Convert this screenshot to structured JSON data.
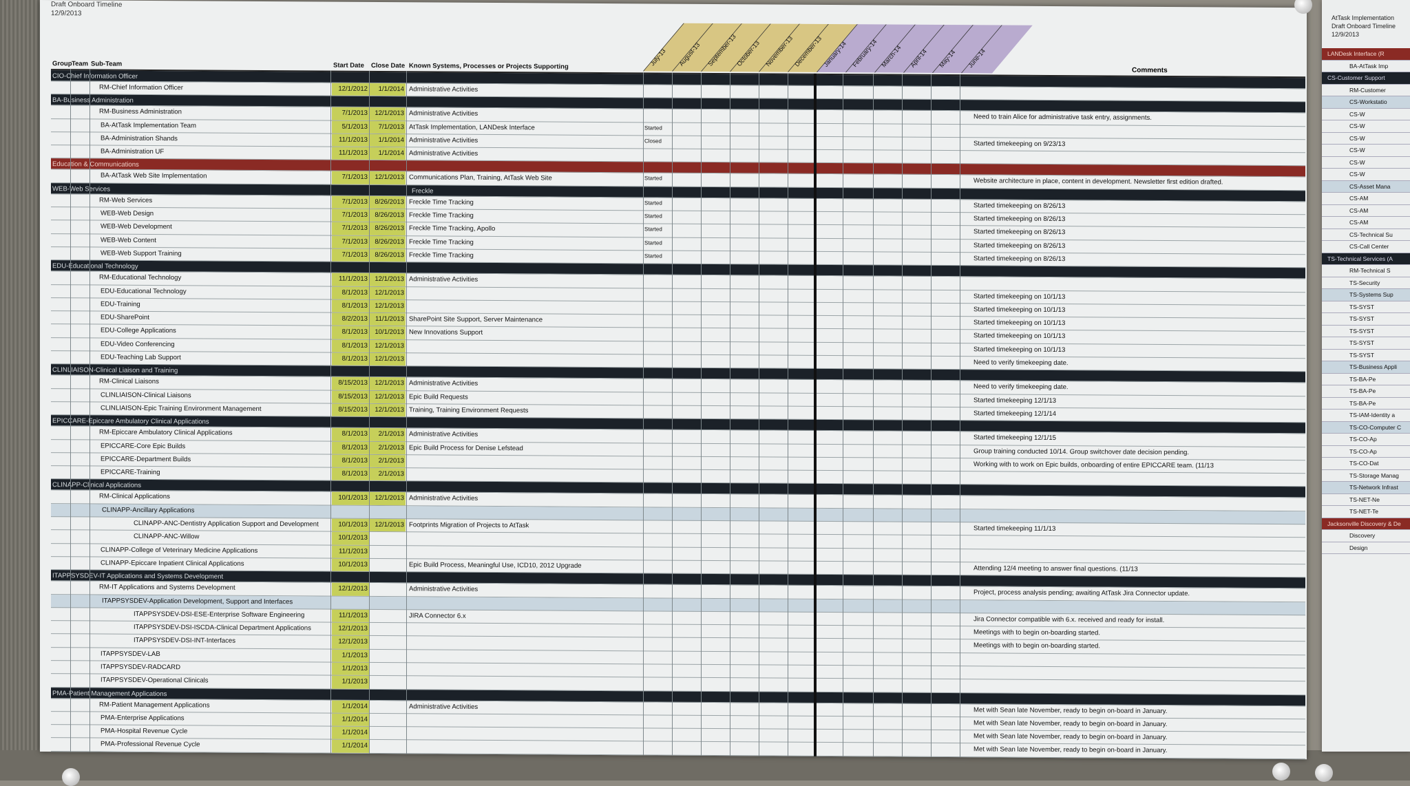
{
  "document": {
    "title": "Draft Onboard Timeline",
    "date": "12/9/2013",
    "headers": {
      "group": "Group",
      "team": "Team",
      "subteam": "Sub-Team",
      "start": "Start Date",
      "close": "Close Date",
      "systems": "Known Systems, Processes or Projects Supporting",
      "comments": "Comments"
    },
    "months": [
      "July-13",
      "August-13",
      "September-13",
      "October-13",
      "November-13",
      "December-13",
      "January-14",
      "February-14",
      "March-14",
      "April-14",
      "May-14",
      "June-14"
    ],
    "rows": [
      {
        "type": "group",
        "name": "CIO-Chief Information Officer"
      },
      {
        "type": "item",
        "name": "RM-Chief Information Officer",
        "start": "12/1/2012",
        "close": "1/1/2014",
        "systems": "Administrative Activities",
        "comment": ""
      },
      {
        "type": "group",
        "name": "BA-Business Administration"
      },
      {
        "type": "item",
        "name": "RM-Business Administration",
        "start": "7/1/2013",
        "close": "12/1/2013",
        "systems": "Administrative Activities",
        "comment": "Need to train Alice for administrative task entry, assignments."
      },
      {
        "type": "item",
        "name": "BA-AtTask Implementation Team",
        "start": "5/1/2013",
        "close": "7/1/2013",
        "systems": "AtTask Implementation, LANDesk Interface",
        "comment": "",
        "tag": "Started"
      },
      {
        "type": "item",
        "name": "BA-Administration Shands",
        "start": "11/1/2013",
        "close": "1/1/2014",
        "systems": "Administrative Activities",
        "comment": "Started timekeeping on 9/23/13",
        "tag": "Closed"
      },
      {
        "type": "item",
        "name": "BA-Administration UF",
        "start": "11/1/2013",
        "close": "1/1/2014",
        "systems": "Administrative Activities",
        "comment": ""
      },
      {
        "type": "redgroup",
        "name": "Education & Communications"
      },
      {
        "type": "item",
        "name": "BA-AtTask Web Site Implementation",
        "start": "7/1/2013",
        "close": "12/1/2013",
        "systems": "Communications Plan, Training, AtTask Web Site",
        "comment": "Website architecture in place, content in development. Newsletter first edition drafted.",
        "tag": "Started"
      },
      {
        "type": "group",
        "name": "WEB-Web Services",
        "extra": "Freckle"
      },
      {
        "type": "item",
        "name": "RM-Web Services",
        "start": "7/1/2013",
        "close": "8/26/2013",
        "systems": "Freckle Time Tracking",
        "comment": "Started timekeeping on 8/26/13",
        "tag": "Started"
      },
      {
        "type": "item",
        "name": "WEB-Web Design",
        "start": "7/1/2013",
        "close": "8/26/2013",
        "systems": "Freckle Time Tracking",
        "comment": "Started timekeeping on 8/26/13",
        "tag": "Started"
      },
      {
        "type": "item",
        "name": "WEB-Web Development",
        "start": "7/1/2013",
        "close": "8/26/2013",
        "systems": "Freckle Time Tracking, Apollo",
        "comment": "Started timekeeping on 8/26/13",
        "tag": "Started"
      },
      {
        "type": "item",
        "name": "WEB-Web Content",
        "start": "7/1/2013",
        "close": "8/26/2013",
        "systems": "Freckle Time Tracking",
        "comment": "Started timekeeping on 8/26/13",
        "tag": "Started"
      },
      {
        "type": "item",
        "name": "WEB-Web Support Training",
        "start": "7/1/2013",
        "close": "8/26/2013",
        "systems": "Freckle Time Tracking",
        "comment": "Started timekeeping on 8/26/13",
        "tag": "Started"
      },
      {
        "type": "group",
        "name": "EDU-Educational Technology"
      },
      {
        "type": "item",
        "name": "RM-Educational Technology",
        "start": "11/1/2013",
        "close": "12/1/2013",
        "systems": "Administrative Activities",
        "comment": ""
      },
      {
        "type": "item",
        "name": "EDU-Educational Technology",
        "start": "8/1/2013",
        "close": "12/1/2013",
        "systems": "",
        "comment": "Started timekeeping on 10/1/13"
      },
      {
        "type": "item",
        "name": "EDU-Training",
        "start": "8/1/2013",
        "close": "12/1/2013",
        "systems": "",
        "comment": "Started timekeeping on 10/1/13"
      },
      {
        "type": "item",
        "name": "EDU-SharePoint",
        "start": "8/2/2013",
        "close": "11/1/2013",
        "systems": "SharePoint Site Support, Server Maintenance",
        "comment": "Started timekeeping on 10/1/13"
      },
      {
        "type": "item",
        "name": "EDU-College Applications",
        "start": "8/1/2013",
        "close": "10/1/2013",
        "systems": "New Innovations Support",
        "comment": "Started timekeeping on 10/1/13"
      },
      {
        "type": "item",
        "name": "EDU-Video Conferencing",
        "start": "8/1/2013",
        "close": "12/1/2013",
        "systems": "",
        "comment": "Started timekeeping on 10/1/13"
      },
      {
        "type": "item",
        "name": "EDU-Teaching Lab Support",
        "start": "8/1/2013",
        "close": "12/1/2013",
        "systems": "",
        "comment": "Need to verify timekeeping date."
      },
      {
        "type": "group",
        "name": "CLINLIAISON-Clinical Liaison and Training"
      },
      {
        "type": "item",
        "name": "RM-Clinical Liaisons",
        "start": "8/15/2013",
        "close": "12/1/2013",
        "systems": "Administrative Activities",
        "comment": "Need to verify timekeeping date."
      },
      {
        "type": "item",
        "name": "CLINLIAISON-Clinical Liaisons",
        "start": "8/15/2013",
        "close": "12/1/2013",
        "systems": "Epic Build Requests",
        "comment": "Started timekeeping 12/1/13"
      },
      {
        "type": "item",
        "name": "CLINLIAISON-Epic Training Environment Management",
        "start": "8/15/2013",
        "close": "12/1/2013",
        "systems": "Training, Training Environment Requests",
        "comment": "Started timekeeping 12/1/14"
      },
      {
        "type": "group",
        "name": "EPICCARE-Epiccare Ambulatory Clinical Applications"
      },
      {
        "type": "item",
        "name": "RM-Epiccare Ambulatory Clinical Applications",
        "start": "8/1/2013",
        "close": "2/1/2013",
        "systems": "Administrative Activities",
        "comment": "Started timekeeping 12/1/15"
      },
      {
        "type": "item",
        "name": "EPICCARE-Core Epic Builds",
        "start": "8/1/2013",
        "close": "2/1/2013",
        "systems": "Epic Build Process for Denise Lefstead",
        "comment": "Group training conducted 10/14. Group switchover date decision pending."
      },
      {
        "type": "item",
        "name": "EPICCARE-Department Builds",
        "start": "8/1/2013",
        "close": "2/1/2013",
        "systems": "",
        "comment": "Working with to work on Epic builds, onboarding of entire EPICCARE team. (11/13"
      },
      {
        "type": "item",
        "name": "EPICCARE-Training",
        "start": "8/1/2013",
        "close": "2/1/2013",
        "systems": "",
        "comment": ""
      },
      {
        "type": "group",
        "name": "CLINAPP-Clinical Applications"
      },
      {
        "type": "item",
        "name": "RM-Clinical Applications",
        "start": "10/1/2013",
        "close": "12/1/2013",
        "systems": "Administrative Activities",
        "comment": ""
      },
      {
        "type": "sub",
        "name": "CLINAPP-Ancillary Applications"
      },
      {
        "type": "item",
        "name": "CLINAPP-ANC-Dentistry Application Support and Development",
        "start": "10/1/2013",
        "close": "12/1/2013",
        "systems": "Footprints Migration of Projects to AtTask",
        "comment": "Started timekeeping 11/1/13"
      },
      {
        "type": "item",
        "name": "CLINAPP-ANC-Willow",
        "start": "10/1/2013",
        "close": "",
        "systems": "",
        "comment": ""
      },
      {
        "type": "item",
        "name": "CLINAPP-College of Veterinary Medicine Applications",
        "start": "11/1/2013",
        "close": "",
        "systems": "",
        "comment": ""
      },
      {
        "type": "item",
        "name": "CLINAPP-Epiccare Inpatient Clinical Applications",
        "start": "10/1/2013",
        "close": "",
        "systems": "Epic Build Process, Meaningful Use, ICD10, 2012 Upgrade",
        "comment": "Attending 12/4 meeting to answer final questions. (11/13"
      },
      {
        "type": "group",
        "name": "ITAPPSYSDEV-IT Applications and Systems Development"
      },
      {
        "type": "item",
        "name": "RM-IT Applications and Systems Development",
        "start": "12/1/2013",
        "close": "",
        "systems": "Administrative Activities",
        "comment": "Project, process analysis pending; awaiting AtTask Jira Connector update."
      },
      {
        "type": "sub",
        "name": "ITAPPSYSDEV-Application Development, Support and Interfaces"
      },
      {
        "type": "item",
        "name": "ITAPPSYSDEV-DSI-ESE-Enterprise Software Engineering",
        "start": "11/1/2013",
        "close": "",
        "systems": "JIRA Connector 6.x",
        "comment": "Jira Connector compatible with 6.x. received and ready for install."
      },
      {
        "type": "item",
        "name": "ITAPPSYSDEV-DSI-ISCDA-Clinical Department Applications",
        "start": "12/1/2013",
        "close": "",
        "systems": "",
        "comment": "Meetings with to begin on-boarding started."
      },
      {
        "type": "item",
        "name": "ITAPPSYSDEV-DSI-INT-Interfaces",
        "start": "12/1/2013",
        "close": "",
        "systems": "",
        "comment": "Meetings with to begin on-boarding started."
      },
      {
        "type": "item",
        "name": "ITAPPSYSDEV-LAB",
        "start": "1/1/2013",
        "close": "",
        "systems": "",
        "comment": ""
      },
      {
        "type": "item",
        "name": "ITAPPSYSDEV-RADCARD",
        "start": "1/1/2013",
        "close": "",
        "systems": "",
        "comment": ""
      },
      {
        "type": "item",
        "name": "ITAPPSYSDEV-Operational Clinicals",
        "start": "1/1/2013",
        "close": "",
        "systems": "",
        "comment": ""
      },
      {
        "type": "group",
        "name": "PMA-Patient Management Applications"
      },
      {
        "type": "item",
        "name": "RM-Patient Management Applications",
        "start": "1/1/2014",
        "close": "",
        "systems": "Administrative Activities",
        "comment": "Met with Sean late November, ready to begin on-board in January."
      },
      {
        "type": "item",
        "name": "PMA-Enterprise Applications",
        "start": "1/1/2014",
        "close": "",
        "systems": "",
        "comment": "Met with Sean late November, ready to begin on-board in January."
      },
      {
        "type": "item",
        "name": "PMA-Hospital Revenue Cycle",
        "start": "1/1/2014",
        "close": "",
        "systems": "",
        "comment": "Met with Sean late November, ready to begin on-board in January."
      },
      {
        "type": "item",
        "name": "PMA-Professional Revenue Cycle",
        "start": "1/1/2014",
        "close": "",
        "systems": "",
        "comment": "Met with Sean late November, ready to begin on-board in January."
      }
    ]
  },
  "second_sheet": {
    "title_lines": [
      "AtTask Implementation",
      "Draft Onboard Timeline",
      "12/9/2013"
    ],
    "rows": [
      {
        "type": "r",
        "name": "LANDesk Interface (R"
      },
      {
        "type": "i",
        "name": "BA-AtTask Imp"
      },
      {
        "type": "g",
        "name": "CS-Customer Support"
      },
      {
        "type": "i",
        "name": "RM-Customer"
      },
      {
        "type": "s",
        "name": "CS-Workstatio"
      },
      {
        "type": "i",
        "name": "CS-W"
      },
      {
        "type": "i",
        "name": "CS-W"
      },
      {
        "type": "i",
        "name": "CS-W"
      },
      {
        "type": "i",
        "name": "CS-W"
      },
      {
        "type": "i",
        "name": "CS-W"
      },
      {
        "type": "i",
        "name": "CS-W"
      },
      {
        "type": "s",
        "name": "CS-Asset Mana"
      },
      {
        "type": "i",
        "name": "CS-AM"
      },
      {
        "type": "i",
        "name": "CS-AM"
      },
      {
        "type": "i",
        "name": "CS-AM"
      },
      {
        "type": "i",
        "name": "CS-Technical Su"
      },
      {
        "type": "i",
        "name": "CS-Call Center"
      },
      {
        "type": "g",
        "name": "TS-Technical Services (A"
      },
      {
        "type": "i",
        "name": "RM-Technical S"
      },
      {
        "type": "i",
        "name": "TS-Security"
      },
      {
        "type": "s",
        "name": "TS-Systems Sup"
      },
      {
        "type": "i",
        "name": "TS-SYST"
      },
      {
        "type": "i",
        "name": "TS-SYST"
      },
      {
        "type": "i",
        "name": "TS-SYST"
      },
      {
        "type": "i",
        "name": "TS-SYST"
      },
      {
        "type": "i",
        "name": "TS-SYST"
      },
      {
        "type": "s",
        "name": "TS-Business Appli"
      },
      {
        "type": "i",
        "name": "TS-BA-Pe"
      },
      {
        "type": "i",
        "name": "TS-BA-Pe"
      },
      {
        "type": "i",
        "name": "TS-BA-Pe"
      },
      {
        "type": "i",
        "name": "TS-IAM-Identity a"
      },
      {
        "type": "s",
        "name": "TS-CO-Computer C"
      },
      {
        "type": "i",
        "name": "TS-CO-Ap"
      },
      {
        "type": "i",
        "name": "TS-CO-Ap"
      },
      {
        "type": "i",
        "name": "TS-CO-Dat"
      },
      {
        "type": "i",
        "name": "TS-Storage Manag"
      },
      {
        "type": "s",
        "name": "TS-Network Infrast"
      },
      {
        "type": "i",
        "name": "TS-NET-Ne"
      },
      {
        "type": "i",
        "name": "TS-NET-Te"
      },
      {
        "type": "r",
        "name": "Jacksonville Discovery & De"
      },
      {
        "type": "i",
        "name": "Discovery"
      },
      {
        "type": "i",
        "name": "Design"
      }
    ]
  },
  "colors": {
    "dark_band": "#1b2128",
    "red_band": "#8a2a24",
    "date_fill": "#c6cf5a",
    "timeline_fill": "#e6e277",
    "sub_band": "#c9d6df"
  }
}
